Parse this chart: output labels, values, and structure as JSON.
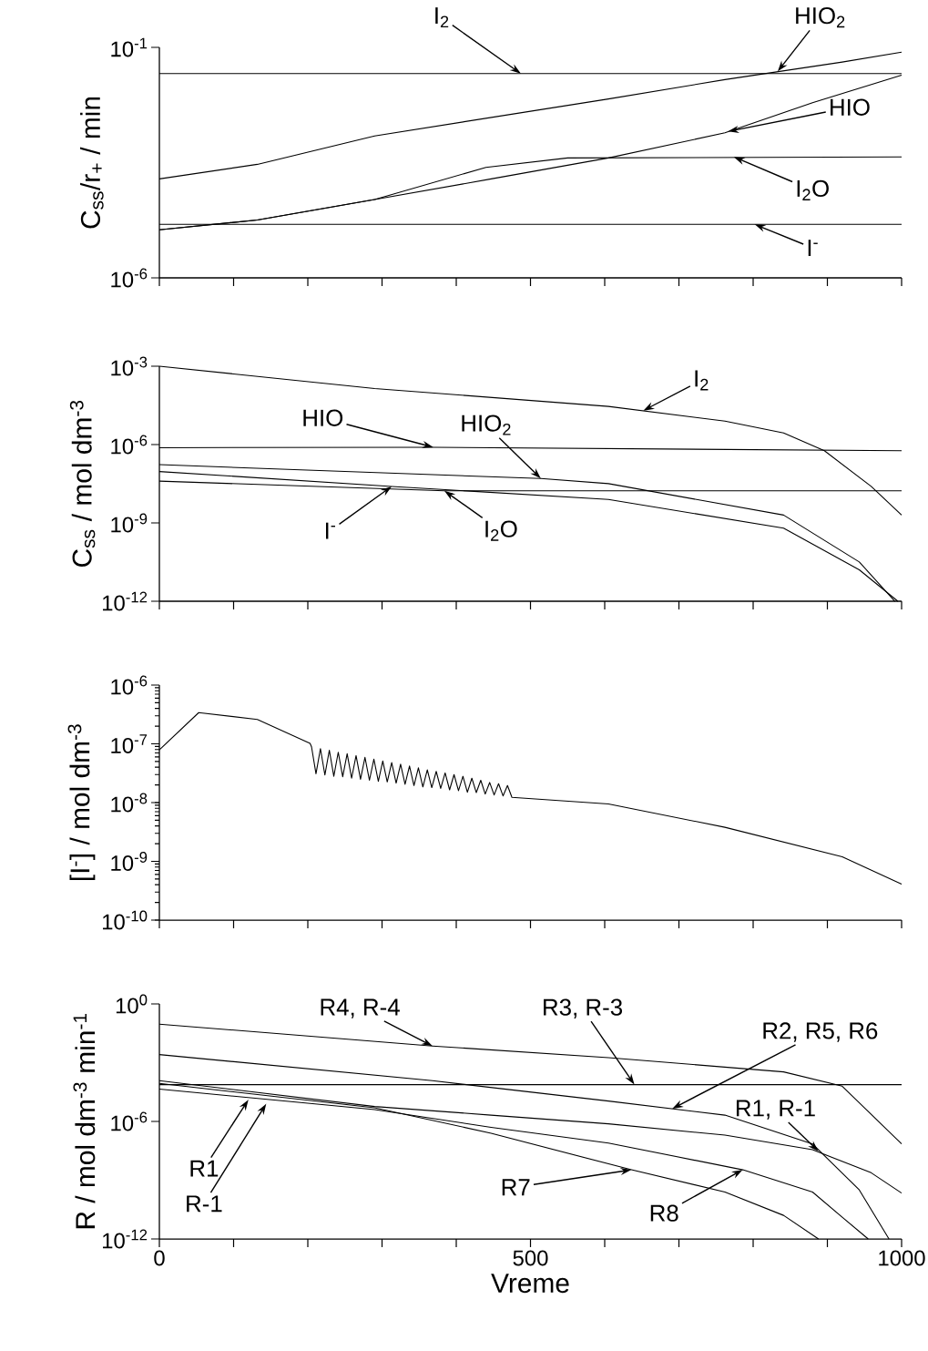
{
  "chart_data": [
    {
      "type": "line",
      "ylabel": "C$_{ss}$/r$_{+}$ / min",
      "log": "y",
      "tick_labels": "y",
      "xlim": [
        0,
        1000
      ],
      "xticks": [
        {
          "value": 0,
          "label": null
        },
        {
          "value": 100,
          "label": null
        },
        {
          "value": 200,
          "label": null
        },
        {
          "value": 300,
          "label": null
        },
        {
          "value": 400,
          "label": null
        },
        {
          "value": 500,
          "label": null
        },
        {
          "value": 600,
          "label": null
        },
        {
          "value": 700,
          "label": null
        },
        {
          "value": 800,
          "label": null
        },
        {
          "value": 900,
          "label": null
        },
        {
          "value": 1000,
          "label": null
        }
      ],
      "ylim": [
        1e-06,
        0.1
      ],
      "yticks": [
        {
          "value": 1e-06,
          "label": "10$^{-6}$"
        },
        {
          "value": 0.1,
          "label": "10$^{-1}$"
        }
      ],
      "series": [
        {
          "color": "#000000",
          "x": [
            0,
            1000
          ],
          "values": [
            0.027,
            0.027
          ]
        },
        {
          "color": "#000000",
          "x": [
            0,
            132,
            290,
            605,
            762,
            920,
            1000
          ],
          "values": [
            0.00014,
            0.00029,
            0.0012,
            0.0076,
            0.02,
            0.048,
            0.079
          ]
        },
        {
          "color": "#000000",
          "x": [
            0,
            132,
            290,
            447,
            605,
            762,
            880,
            1000
          ],
          "values": [
            1.1e-05,
            1.8e-05,
            5e-05,
            0.00014,
            0.0004,
            0.0014,
            0.0063,
            0.025
          ]
        },
        {
          "color": "#000000",
          "x": [
            0,
            132,
            290,
            440,
            550,
            1000
          ],
          "values": [
            1.1e-05,
            1.8e-05,
            5e-05,
            0.00025,
            0.0004,
            0.00042
          ]
        },
        {
          "color": "#000000",
          "x": [
            0,
            1000
          ],
          "values": [
            1.45e-05,
            1.45e-05
          ]
        }
      ],
      "annotations": [
        {
          "text": "I$_{2}$",
          "x": 487,
          "y": 0.027
        },
        {
          "text": "HIO$_{2}$",
          "x": 833,
          "y": 0.03
        },
        {
          "text": "HIO",
          "x": 766,
          "y": 0.0015
        },
        {
          "text": "I$_{2}$O",
          "x": 774,
          "y": 0.00042
        },
        {
          "text": "I$^{-}$",
          "x": 802,
          "y": 1.45e-05
        }
      ]
    },
    {
      "type": "line",
      "ylabel": "C$_{ss}$ / mol dm$^{-3}$",
      "log": "y",
      "tick_labels": "y",
      "xlim": [
        0,
        1000
      ],
      "xticks": [
        {
          "value": 0,
          "label": null
        },
        {
          "value": 100,
          "label": null
        },
        {
          "value": 200,
          "label": null
        },
        {
          "value": 300,
          "label": null
        },
        {
          "value": 400,
          "label": null
        },
        {
          "value": 500,
          "label": null
        },
        {
          "value": 600,
          "label": null
        },
        {
          "value": 700,
          "label": null
        },
        {
          "value": 800,
          "label": null
        },
        {
          "value": 900,
          "label": null
        },
        {
          "value": 1000,
          "label": null
        }
      ],
      "ylim": [
        1e-12,
        0.001
      ],
      "yticks": [
        {
          "value": 1e-12,
          "label": "10$^{-12}$"
        },
        {
          "value": 1e-09,
          "label": "10$^{-9}$"
        },
        {
          "value": 1e-06,
          "label": "10$^{-6}$"
        },
        {
          "value": 0.001,
          "label": "10$^{-3}$"
        }
      ],
      "series": [
        {
          "color": "#000000",
          "x": [
            0,
            290,
            605,
            762,
            841,
            896,
            959,
            1000
          ],
          "values": [
            0.001,
            0.00014,
            2.9e-05,
            7.9e-06,
            2.8e-06,
            5.8e-07,
            2.5e-08,
            2e-09
          ]
        },
        {
          "color": "#000000",
          "x": [
            0,
            369,
            1000
          ],
          "values": [
            7.6e-07,
            7.9e-07,
            5.8e-07
          ]
        },
        {
          "color": "#000000",
          "x": [
            0,
            514,
            605,
            841,
            943,
            991
          ],
          "values": [
            1.7e-07,
            5e-08,
            3.2e-08,
            2e-09,
            3.2e-11,
            1e-12
          ]
        },
        {
          "color": "#000000",
          "x": [
            0,
            313,
            605,
            841,
            943,
            995
          ],
          "values": [
            9.3e-08,
            2.5e-08,
            7.9e-09,
            6.3e-10,
            1.6e-11,
            1e-12
          ]
        },
        {
          "color": "#000000",
          "x": [
            0,
            384,
            1000
          ],
          "values": [
            4e-08,
            1.7e-08,
            1.7e-08
          ]
        }
      ],
      "annotations": [
        {
          "text": "I$_{2}$",
          "x": 652,
          "y": 2e-05
        },
        {
          "text": "HIO",
          "x": 369,
          "y": 7.9e-07
        },
        {
          "text": "HIO$_{2}$",
          "x": 514,
          "y": 5e-08
        },
        {
          "text": "I$^{-}$",
          "x": 313,
          "y": 2.5e-08
        },
        {
          "text": "I$_{2}$O",
          "x": 384,
          "y": 1.7e-08
        }
      ]
    },
    {
      "type": "line",
      "ylabel": "[I$^{-}$] / mol dm$^{-3}$",
      "log": "y",
      "tick_labels": "y",
      "xlim": [
        0,
        1000
      ],
      "xticks": [
        {
          "value": 0,
          "label": null
        },
        {
          "value": 100,
          "label": null
        },
        {
          "value": 200,
          "label": null
        },
        {
          "value": 300,
          "label": null
        },
        {
          "value": 400,
          "label": null
        },
        {
          "value": 500,
          "label": null
        },
        {
          "value": 600,
          "label": null
        },
        {
          "value": 700,
          "label": null
        },
        {
          "value": 800,
          "label": null
        },
        {
          "value": 900,
          "label": null
        },
        {
          "value": 1000,
          "label": null
        }
      ],
      "ylim": [
        1e-10,
        1e-06
      ],
      "yticks": [
        {
          "value": 1e-10,
          "label": "10$^{-10}$"
        },
        {
          "value": 1e-09,
          "label": "10$^{-9}$"
        },
        {
          "value": 1e-08,
          "label": "10$^{-8}$"
        },
        {
          "value": 1e-07,
          "label": "10$^{-7}$"
        },
        {
          "value": 1e-06,
          "label": "10$^{-6}$"
        }
      ],
      "series": [
        {
          "color": "#000000",
          "x": [
            0,
            53,
            132,
            203,
            205,
            211,
            217,
            223,
            229,
            235,
            241,
            247,
            253,
            259,
            265,
            271,
            277,
            283,
            289,
            295,
            301,
            307,
            313,
            319,
            325,
            331,
            337,
            343,
            349,
            355,
            361,
            367,
            373,
            379,
            385,
            391,
            397,
            403,
            409,
            415,
            421,
            427,
            433,
            439,
            445,
            451,
            457,
            463,
            469,
            475,
            605,
            762,
            920,
            1000
          ],
          "values": [
            7.9e-08,
            3.4e-07,
            2.6e-07,
            1.02e-07,
            8.9e-08,
            3.1e-08,
            8.3e-08,
            2.95e-08,
            7.8e-08,
            2.8e-08,
            7.2e-08,
            2.75e-08,
            6.8e-08,
            2.6e-08,
            6.3e-08,
            2.5e-08,
            5.9e-08,
            2.4e-08,
            5.5e-08,
            2.3e-08,
            5.1e-08,
            2.25e-08,
            4.8e-08,
            2.15e-08,
            4.5e-08,
            2.05e-08,
            4.2e-08,
            1.95e-08,
            3.9e-08,
            1.85e-08,
            3.6e-08,
            1.8e-08,
            3.4e-08,
            1.75e-08,
            3.2e-08,
            1.65e-08,
            3e-08,
            1.6e-08,
            2.8e-08,
            1.5e-08,
            2.6e-08,
            1.48e-08,
            2.4e-08,
            1.4e-08,
            2.2e-08,
            1.35e-08,
            2.1e-08,
            1.3e-08,
            1.95e-08,
            1.23e-08,
            9.5e-09,
            3.8e-09,
            1.2e-09,
            4.1e-10
          ]
        }
      ]
    },
    {
      "type": "line",
      "xlabel": "Vreme",
      "ylabel": "R / mol dm$^{-3}$ min$^{-1}$",
      "log": "y",
      "xlim": [
        0,
        1000
      ],
      "xticks": [
        0,
        {
          "value": 100,
          "label": null
        },
        {
          "value": 200,
          "label": null
        },
        {
          "value": 300,
          "label": null
        },
        {
          "value": 400,
          "label": null
        },
        500,
        {
          "value": 600,
          "label": null
        },
        {
          "value": 700,
          "label": null
        },
        {
          "value": 800,
          "label": null
        },
        {
          "value": 900,
          "label": null
        },
        1000
      ],
      "ylim": [
        1e-12,
        1
      ],
      "yticks": [
        {
          "value": 1e-12,
          "label": "10$^{-12}$"
        },
        {
          "value": 1e-06,
          "label": "10$^{-6}$"
        },
        {
          "value": 1,
          "label": "10$^{0}$"
        }
      ],
      "series": [
        {
          "color": "#000000",
          "x": [
            0,
            368,
            605,
            841,
            920,
            1000
          ],
          "values": [
            0.093,
            0.0071,
            0.0018,
            0.00034,
            6.3e-05,
            7.1e-08
          ]
        },
        {
          "color": "#000000",
          "x": [
            0,
            368,
            605,
            762,
            880,
            943,
            983
          ],
          "values": [
            0.0026,
            0.00012,
            1.1e-05,
            2.1e-06,
            7.1e-08,
            3.2e-10,
            1e-12
          ]
        },
        {
          "color": "#000000",
          "x": [
            0,
            1000
          ],
          "values": [
            7.6e-05,
            7.6e-05
          ]
        },
        {
          "color": "#000000",
          "x": [
            0,
            290,
            447,
            605,
            762,
            880,
            959,
            1000
          ],
          "values": [
            0.00012,
            5.8e-06,
            2.1e-06,
            7.6e-07,
            2e-07,
            3.6e-08,
            2.4e-09,
            2.2e-10
          ]
        },
        {
          "color": "#000000",
          "x": [
            0,
            290,
            447,
            636,
            762,
            841,
            888
          ],
          "values": [
            8.7e-05,
            5e-06,
            2.5e-07,
            3.4e-09,
            2.5e-10,
            1.6e-11,
            1e-12
          ]
        },
        {
          "color": "#000000",
          "x": [
            0,
            290,
            447,
            605,
            786,
            880,
            920,
            955
          ],
          "values": [
            4.5e-05,
            4e-06,
            5e-07,
            7.9e-08,
            3.4e-09,
            2.5e-10,
            1.3e-11,
            1e-12
          ]
        }
      ],
      "annotations": [
        {
          "text": "R4, R-4",
          "x": 368,
          "y": 0.0071
        },
        {
          "text": "R3, R-3",
          "x": 640,
          "y": 7.6e-05
        },
        {
          "text": "R2, R5, R6",
          "x": 691,
          "y": 4.5e-06
        },
        {
          "text": "R1, R-1",
          "x": 888,
          "y": 3e-08
        },
        {
          "text": "R1",
          "x": 120,
          "y": 1.3e-05
        },
        {
          "text": "R-1",
          "x": 144,
          "y": 8e-06
        },
        {
          "text": "R7",
          "x": 636,
          "y": 3.4e-09
        },
        {
          "text": "R8",
          "x": 786,
          "y": 3.4e-09
        }
      ]
    }
  ]
}
